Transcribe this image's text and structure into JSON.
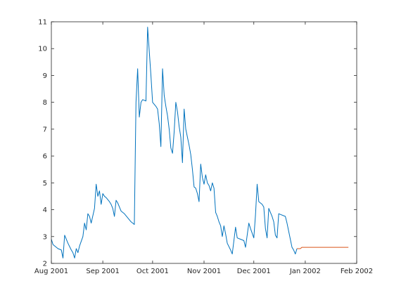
{
  "chart_data": {
    "type": "line",
    "title": "",
    "xlabel": "",
    "ylabel": "",
    "xlim": [
      "2001-08-01",
      "2002-02-01"
    ],
    "ylim": [
      2,
      11
    ],
    "x_ticks": [
      "2001-08-01",
      "2001-09-01",
      "2001-10-01",
      "2001-11-01",
      "2001-12-01",
      "2002-01-01",
      "2002-02-01"
    ],
    "x_tick_labels": [
      "Aug 2001",
      "Sep 2001",
      "Oct 2001",
      "Nov 2001",
      "Dec 2001",
      "Jan 2002",
      "Feb 2002"
    ],
    "y_ticks": [
      2,
      3,
      4,
      5,
      6,
      7,
      8,
      9,
      10,
      11
    ],
    "y_tick_labels": [
      "2",
      "3",
      "4",
      "5",
      "6",
      "7",
      "8",
      "9",
      "10",
      "11"
    ],
    "grid": false,
    "series": [
      {
        "color": "#0072BD",
        "points": [
          [
            "2001-08-01",
            2.9
          ],
          [
            "2001-08-02",
            2.7
          ],
          [
            "2001-08-05",
            2.55
          ],
          [
            "2001-08-07",
            2.5
          ],
          [
            "2001-08-08",
            2.2
          ],
          [
            "2001-08-09",
            3.05
          ],
          [
            "2001-08-10",
            2.9
          ],
          [
            "2001-08-11",
            2.75
          ],
          [
            "2001-08-13",
            2.5
          ],
          [
            "2001-08-14",
            2.4
          ],
          [
            "2001-08-15",
            2.2
          ],
          [
            "2001-08-16",
            2.55
          ],
          [
            "2001-08-17",
            2.4
          ],
          [
            "2001-08-18",
            2.65
          ],
          [
            "2001-08-20",
            3.0
          ],
          [
            "2001-08-21",
            3.5
          ],
          [
            "2001-08-22",
            3.25
          ],
          [
            "2001-08-23",
            3.85
          ],
          [
            "2001-08-24",
            3.75
          ],
          [
            "2001-08-25",
            3.5
          ],
          [
            "2001-08-27",
            4.05
          ],
          [
            "2001-08-28",
            4.95
          ],
          [
            "2001-08-29",
            4.5
          ],
          [
            "2001-08-30",
            4.7
          ],
          [
            "2001-08-31",
            4.2
          ],
          [
            "2001-09-01",
            4.6
          ],
          [
            "2001-09-02",
            4.5
          ],
          [
            "2001-09-03",
            4.45
          ],
          [
            "2001-09-05",
            4.3
          ],
          [
            "2001-09-06",
            4.2
          ],
          [
            "2001-09-07",
            4.05
          ],
          [
            "2001-09-08",
            3.75
          ],
          [
            "2001-09-09",
            4.35
          ],
          [
            "2001-09-10",
            4.25
          ],
          [
            "2001-09-11",
            4.1
          ],
          [
            "2001-09-12",
            3.95
          ],
          [
            "2001-09-14",
            3.85
          ],
          [
            "2001-09-16",
            3.7
          ],
          [
            "2001-09-18",
            3.55
          ],
          [
            "2001-09-19",
            3.5
          ],
          [
            "2001-09-20",
            3.45
          ],
          [
            "2001-09-21",
            8.0
          ],
          [
            "2001-09-22",
            9.25
          ],
          [
            "2001-09-23",
            7.45
          ],
          [
            "2001-09-24",
            8.0
          ],
          [
            "2001-09-25",
            8.1
          ],
          [
            "2001-09-27",
            8.05
          ],
          [
            "2001-09-28",
            10.8
          ],
          [
            "2001-09-29",
            9.9
          ],
          [
            "2001-09-30",
            9.0
          ],
          [
            "2001-10-01",
            8.0
          ],
          [
            "2001-10-03",
            7.85
          ],
          [
            "2001-10-04",
            7.75
          ],
          [
            "2001-10-05",
            7.2
          ],
          [
            "2001-10-06",
            6.35
          ],
          [
            "2001-10-07",
            9.25
          ],
          [
            "2001-10-08",
            8.25
          ],
          [
            "2001-10-09",
            7.85
          ],
          [
            "2001-10-10",
            7.5
          ],
          [
            "2001-10-11",
            7.0
          ],
          [
            "2001-10-12",
            6.3
          ],
          [
            "2001-10-13",
            6.1
          ],
          [
            "2001-10-14",
            6.9
          ],
          [
            "2001-10-15",
            8.0
          ],
          [
            "2001-10-16",
            7.65
          ],
          [
            "2001-10-17",
            7.1
          ],
          [
            "2001-10-18",
            6.7
          ],
          [
            "2001-10-19",
            5.75
          ],
          [
            "2001-10-20",
            7.75
          ],
          [
            "2001-10-21",
            7.0
          ],
          [
            "2001-10-22",
            6.7
          ],
          [
            "2001-10-23",
            6.4
          ],
          [
            "2001-10-24",
            6.05
          ],
          [
            "2001-10-25",
            5.5
          ],
          [
            "2001-10-26",
            4.85
          ],
          [
            "2001-10-27",
            4.8
          ],
          [
            "2001-10-28",
            4.6
          ],
          [
            "2001-10-29",
            4.3
          ],
          [
            "2001-10-30",
            5.7
          ],
          [
            "2001-10-31",
            5.2
          ],
          [
            "2001-11-01",
            4.95
          ],
          [
            "2001-11-02",
            5.3
          ],
          [
            "2001-11-03",
            5.0
          ],
          [
            "2001-11-04",
            4.9
          ],
          [
            "2001-11-05",
            4.7
          ],
          [
            "2001-11-06",
            5.0
          ],
          [
            "2001-11-07",
            4.8
          ],
          [
            "2001-11-08",
            3.9
          ],
          [
            "2001-11-09",
            3.75
          ],
          [
            "2001-11-10",
            3.55
          ],
          [
            "2001-11-11",
            3.4
          ],
          [
            "2001-11-12",
            3.0
          ],
          [
            "2001-11-13",
            3.4
          ],
          [
            "2001-11-14",
            3.1
          ],
          [
            "2001-11-15",
            2.75
          ],
          [
            "2001-11-17",
            2.5
          ],
          [
            "2001-11-18",
            2.35
          ],
          [
            "2001-11-20",
            3.35
          ],
          [
            "2001-11-21",
            2.95
          ],
          [
            "2001-11-23",
            2.9
          ],
          [
            "2001-11-25",
            2.85
          ],
          [
            "2001-11-26",
            2.6
          ],
          [
            "2001-11-28",
            3.5
          ],
          [
            "2001-11-29",
            3.3
          ],
          [
            "2001-12-01",
            2.95
          ],
          [
            "2001-12-02",
            3.8
          ],
          [
            "2001-12-03",
            4.95
          ],
          [
            "2001-12-04",
            4.3
          ],
          [
            "2001-12-06",
            4.2
          ],
          [
            "2001-12-07",
            4.1
          ],
          [
            "2001-12-08",
            3.3
          ],
          [
            "2001-12-09",
            2.95
          ],
          [
            "2001-12-10",
            4.05
          ],
          [
            "2001-12-11",
            3.9
          ],
          [
            "2001-12-12",
            3.75
          ],
          [
            "2001-12-13",
            3.55
          ],
          [
            "2001-12-14",
            3.05
          ],
          [
            "2001-12-15",
            2.95
          ],
          [
            "2001-12-16",
            3.85
          ],
          [
            "2001-12-20",
            3.75
          ],
          [
            "2001-12-21",
            3.5
          ],
          [
            "2001-12-22",
            3.2
          ],
          [
            "2001-12-23",
            2.9
          ],
          [
            "2001-12-24",
            2.6
          ],
          [
            "2001-12-25",
            2.5
          ],
          [
            "2001-12-26",
            2.35
          ],
          [
            "2001-12-27",
            2.55
          ]
        ]
      },
      {
        "color": "#D95319",
        "points": [
          [
            "2001-12-27",
            2.55
          ],
          [
            "2001-12-29",
            2.55
          ],
          [
            "2001-12-30",
            2.6
          ],
          [
            "2002-01-01",
            2.6
          ],
          [
            "2002-01-10",
            2.6
          ],
          [
            "2002-01-20",
            2.6
          ],
          [
            "2002-01-27",
            2.6
          ]
        ]
      }
    ]
  }
}
